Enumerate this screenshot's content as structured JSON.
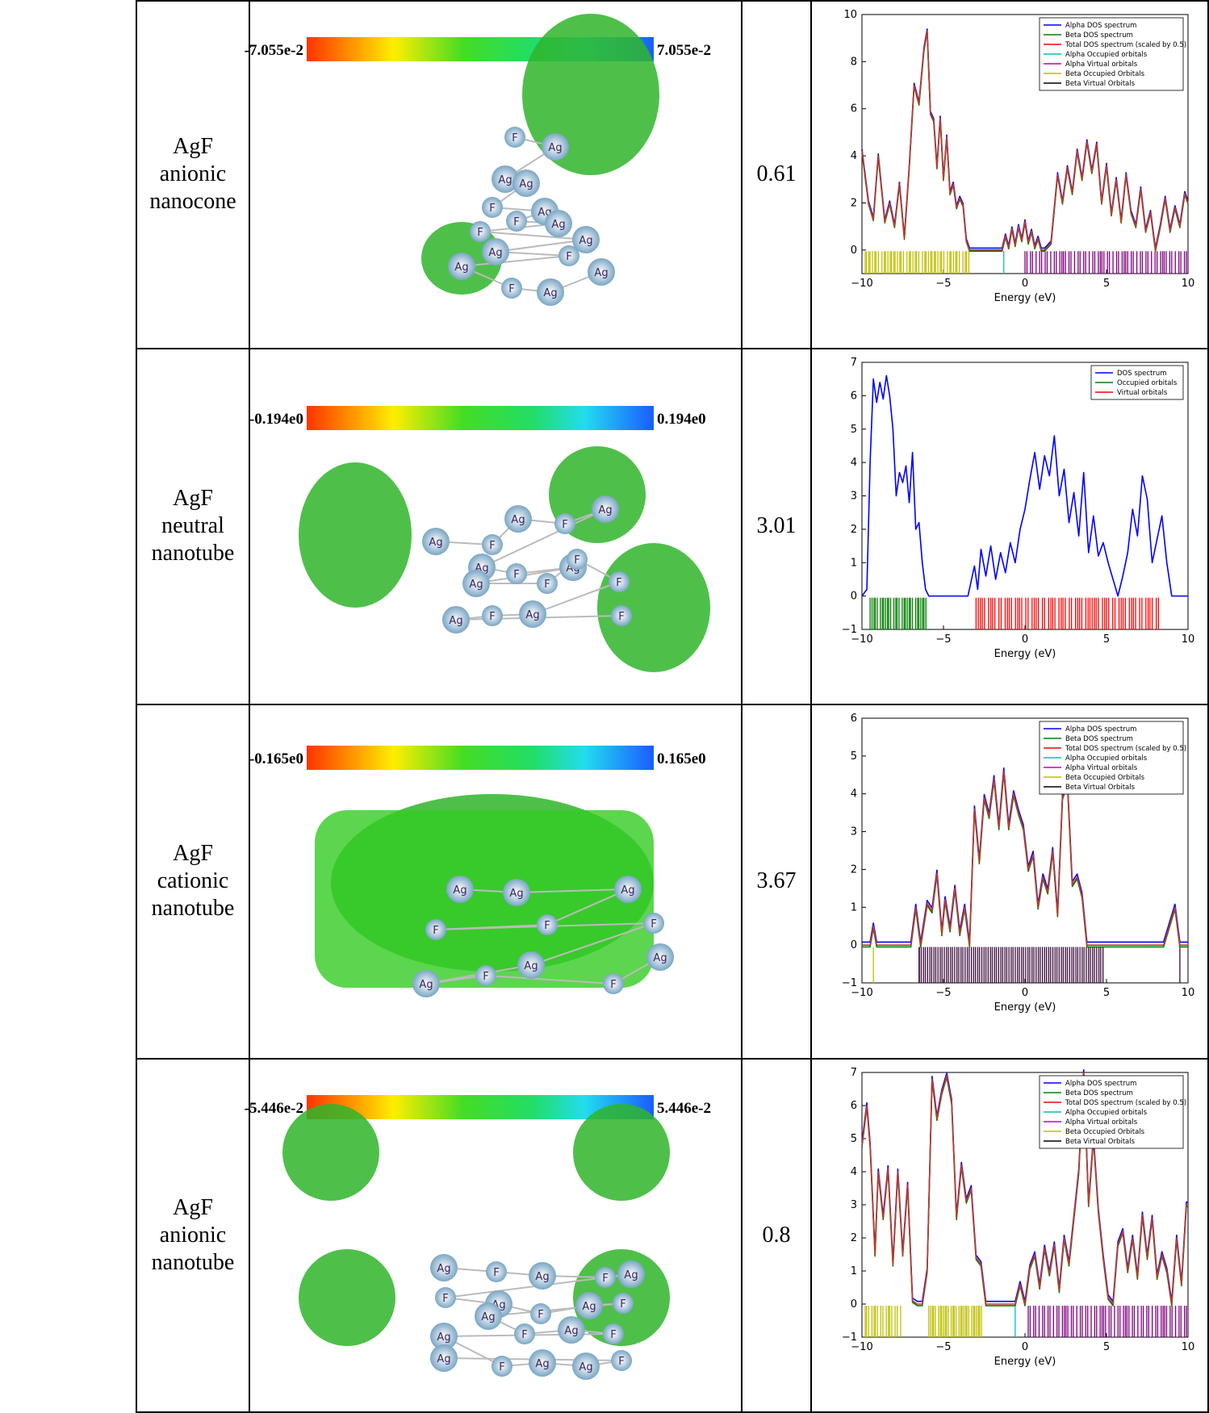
{
  "rows": [
    {
      "name_lines": [
        "AgF",
        "anionic",
        "nanocone"
      ],
      "gap": "0.61",
      "colorbar": {
        "min": "-7.055e-2",
        "max": "7.055e-2"
      },
      "atoms": [
        "F",
        "Ag",
        "Ag",
        "Ag",
        "F",
        "Ag",
        "F",
        "Ag",
        "F",
        "Ag",
        "Ag",
        "F",
        "Ag",
        "F",
        "Ag",
        "Ag"
      ]
    },
    {
      "name_lines": [
        "AgF",
        "neutral",
        "nanotube"
      ],
      "gap": "3.01",
      "colorbar": {
        "min": "-0.194e0",
        "max": "0.194e0"
      },
      "atoms": [
        "Ag",
        "F",
        "Ag",
        "F",
        "Ag",
        "Ag",
        "F",
        "Ag",
        "Ag",
        "F",
        "F",
        "F",
        "Ag",
        "F",
        "Ag",
        "F"
      ]
    },
    {
      "name_lines": [
        "AgF",
        "cationic",
        "nanotube"
      ],
      "gap": "3.67",
      "colorbar": {
        "min": "-0.165e0",
        "max": "0.165e0"
      },
      "atoms": [
        "Ag",
        "Ag",
        "Ag",
        "F",
        "F",
        "F",
        "Ag",
        "Ag",
        "F",
        "F",
        "Ag"
      ]
    },
    {
      "name_lines": [
        "AgF",
        "anionic",
        "nanotube"
      ],
      "gap": "0.8",
      "colorbar": {
        "min": "-5.446e-2",
        "max": "5.446e-2"
      },
      "atoms": [
        "Ag",
        "F",
        "Ag",
        "F",
        "Ag",
        "F",
        "Ag",
        "F",
        "Ag",
        "F",
        "Ag",
        "F",
        "Ag",
        "F",
        "Ag",
        "F",
        "Ag",
        "Ag",
        "F",
        "Ag"
      ]
    }
  ],
  "chart_data": [
    {
      "type": "line",
      "xlabel": "Energy (eV)",
      "xlim": [
        -10,
        10
      ],
      "ylim": [
        -1,
        10
      ],
      "xticks": [
        -10,
        -5,
        0,
        5,
        10
      ],
      "yticks": [
        0,
        2,
        4,
        6,
        8,
        10
      ],
      "legend_position": "top-right",
      "legend": [
        "Alpha DOS spectrum",
        "Beta DOS spectrum",
        "Total DOS spectrum (scaled by 0.5)",
        "Alpha Occupied orbitals",
        "Alpha Virtual orbitals",
        "Beta Occupied Orbitals",
        "Beta Virtual Orbitals"
      ],
      "legend_colors": [
        "#0000ff",
        "#008000",
        "#ff0000",
        "#00bfbf",
        "#bf00bf",
        "#bfbf00",
        "#000000"
      ],
      "series": [
        {
          "name": "Total DOS spectrum (scaled by 0.5)",
          "color": "#c0392b",
          "x": [
            -10,
            -9.6,
            -9.3,
            -9.0,
            -8.6,
            -8.3,
            -8.0,
            -7.7,
            -7.4,
            -7.1,
            -6.8,
            -6.5,
            -6.2,
            -6.0,
            -5.8,
            -5.6,
            -5.4,
            -5.2,
            -5.0,
            -4.8,
            -4.6,
            -4.4,
            -4.2,
            -4.0,
            -3.8,
            -3.6,
            -3.4,
            -3.2,
            -3.0,
            -2.0,
            -1.4,
            -1.2,
            -1.0,
            -0.8,
            -0.6,
            -0.4,
            -0.2,
            0.0,
            0.2,
            0.4,
            0.6,
            0.8,
            1.0,
            1.2,
            1.6,
            2.0,
            2.3,
            2.6,
            2.9,
            3.2,
            3.5,
            3.8,
            4.1,
            4.4,
            4.7,
            5.0,
            5.3,
            5.6,
            5.9,
            6.2,
            6.5,
            6.8,
            7.1,
            7.4,
            7.7,
            8.0,
            8.3,
            8.6,
            8.9,
            9.2,
            9.5,
            9.8,
            10
          ],
          "y": [
            4.2,
            2.0,
            1.3,
            4.0,
            1.2,
            2.0,
            1.0,
            2.8,
            0.5,
            3.5,
            7.0,
            6.2,
            8.5,
            9.3,
            5.8,
            5.5,
            3.5,
            5.6,
            3.0,
            4.8,
            2.4,
            2.8,
            1.8,
            2.2,
            1.9,
            0.4,
            0.0,
            0.0,
            0.0,
            0.0,
            0.0,
            0.6,
            0.1,
            0.9,
            0.2,
            1.0,
            0.4,
            1.2,
            0.3,
            0.8,
            0.1,
            0.5,
            0.0,
            0.0,
            0.3,
            3.2,
            2.0,
            3.5,
            2.4,
            4.2,
            3.0,
            4.6,
            3.3,
            4.5,
            2.0,
            3.6,
            1.5,
            3.0,
            1.2,
            3.2,
            1.6,
            1.0,
            2.6,
            0.8,
            1.6,
            0.0,
            1.0,
            2.2,
            0.8,
            1.8,
            1.0,
            2.4,
            2.0
          ]
        }
      ],
      "orbital_bands": [
        {
          "color": "#bfbf00",
          "from": -9.8,
          "to": -3.3,
          "count": 50
        },
        {
          "color": "#00bfbf",
          "from": -1.3,
          "to": -1.3,
          "count": 1
        },
        {
          "color": "#800080",
          "from": 0.0,
          "to": 10.0,
          "count": 60
        }
      ]
    },
    {
      "type": "line",
      "xlabel": "Energy (eV)",
      "xlim": [
        -10,
        10
      ],
      "ylim": [
        -1,
        7
      ],
      "xticks": [
        -10,
        -5,
        0,
        5,
        10
      ],
      "yticks": [
        -1,
        0,
        1,
        2,
        3,
        4,
        5,
        6,
        7
      ],
      "legend_position": "top-right",
      "legend": [
        "DOS spectrum",
        "Occupied orbitals",
        "Virtual orbitals"
      ],
      "legend_colors": [
        "#0000ff",
        "#008000",
        "#ff0000"
      ],
      "series": [
        {
          "name": "DOS spectrum",
          "color": "#0000ff",
          "x": [
            -10,
            -9.7,
            -9.5,
            -9.3,
            -9.1,
            -8.9,
            -8.7,
            -8.5,
            -8.3,
            -8.1,
            -7.9,
            -7.7,
            -7.5,
            -7.3,
            -7.1,
            -6.9,
            -6.7,
            -6.5,
            -6.3,
            -6.1,
            -5.9,
            -5.7,
            -5.5,
            -3.5,
            -3.1,
            -2.9,
            -2.7,
            -2.4,
            -2.1,
            -1.8,
            -1.5,
            -1.2,
            -0.9,
            -0.6,
            -0.3,
            0.0,
            0.3,
            0.6,
            0.9,
            1.2,
            1.5,
            1.8,
            2.1,
            2.4,
            2.7,
            3.0,
            3.3,
            3.6,
            3.9,
            4.2,
            4.5,
            4.8,
            5.1,
            5.4,
            5.7,
            6.0,
            6.3,
            6.6,
            6.9,
            7.2,
            7.5,
            7.8,
            8.1,
            8.4,
            8.7,
            9.0,
            10
          ],
          "y": [
            0,
            0.2,
            4.0,
            6.5,
            5.8,
            6.4,
            5.9,
            6.6,
            6.0,
            5.0,
            3.0,
            3.7,
            3.4,
            3.9,
            2.8,
            4.3,
            2.0,
            2.2,
            1.0,
            0.2,
            0.0,
            0.0,
            0.0,
            0.0,
            0.9,
            0.2,
            1.4,
            0.6,
            1.5,
            0.5,
            1.3,
            0.7,
            1.6,
            1.0,
            2.0,
            2.6,
            3.5,
            4.3,
            3.2,
            4.2,
            3.6,
            4.8,
            3.0,
            3.8,
            2.2,
            3.1,
            1.8,
            3.7,
            1.3,
            2.4,
            1.2,
            1.6,
            1.0,
            0.5,
            0.0,
            0.6,
            1.3,
            2.6,
            1.8,
            3.6,
            2.9,
            1.0,
            1.7,
            2.4,
            1.0,
            0.0,
            0.0
          ]
        }
      ],
      "orbital_bands": [
        {
          "color": "#008000",
          "from": -9.5,
          "to": -6.0,
          "count": 30
        },
        {
          "color": "#ff0000",
          "from": -3.0,
          "to": 8.3,
          "count": 70
        }
      ]
    },
    {
      "type": "line",
      "xlabel": "Energy (eV)",
      "xlim": [
        -10,
        10
      ],
      "ylim": [
        -1,
        6
      ],
      "xticks": [
        -10,
        -5,
        0,
        5,
        10
      ],
      "yticks": [
        -1,
        0,
        1,
        2,
        3,
        4,
        5,
        6
      ],
      "legend_position": "top-right",
      "legend": [
        "Alpha DOS spectrum",
        "Beta DOS spectrum",
        "Total DOS spectrum (scaled by 0.5)",
        "Alpha Occupied orbitals",
        "Alpha Virtual orbitals",
        "Beta Occupied Orbitals",
        "Beta Virtual Orbitals"
      ],
      "legend_colors": [
        "#0000ff",
        "#008000",
        "#ff0000",
        "#00bfbf",
        "#bf00bf",
        "#bfbf00",
        "#000000"
      ],
      "series": [
        {
          "name": "Total DOS spectrum (scaled by 0.5)",
          "color": "#c0392b",
          "x": [
            -10,
            -9.5,
            -9.3,
            -9.1,
            -8.9,
            -8.5,
            -7.0,
            -6.7,
            -6.4,
            -6.0,
            -5.7,
            -5.4,
            -5.1,
            -4.9,
            -4.6,
            -4.3,
            -4.0,
            -3.7,
            -3.4,
            -3.1,
            -2.8,
            -2.5,
            -2.2,
            -1.9,
            -1.6,
            -1.3,
            -1.0,
            -0.7,
            -0.4,
            -0.1,
            0.2,
            0.5,
            0.8,
            1.1,
            1.4,
            1.7,
            2.0,
            2.3,
            2.6,
            2.9,
            3.2,
            3.5,
            3.8,
            4.1,
            4.4,
            4.7,
            5.0,
            5.3,
            8.5,
            9.2,
            9.5,
            9.8,
            10
          ],
          "y": [
            0,
            0.0,
            0.5,
            0.0,
            0.0,
            0.0,
            0.0,
            1.0,
            0.0,
            1.1,
            0.9,
            1.9,
            0.3,
            1.2,
            0.4,
            1.5,
            0.3,
            1.0,
            0.0,
            3.6,
            2.2,
            3.9,
            3.4,
            4.4,
            3.1,
            4.6,
            3.1,
            4.0,
            3.5,
            3.1,
            2.0,
            2.4,
            1.0,
            1.8,
            1.4,
            2.5,
            0.8,
            3.9,
            4.3,
            1.6,
            1.8,
            1.3,
            0.0,
            0.0,
            0.0,
            0.0,
            0.0,
            0.0,
            0.0,
            1.0,
            0.0,
            0.0,
            0.0
          ]
        }
      ],
      "orbital_bands": [
        {
          "color": "#bfbf00",
          "from": -9.3,
          "to": -9.3,
          "count": 1
        },
        {
          "color": "#3b0a3b",
          "from": -6.5,
          "to": 4.9,
          "count": 90
        },
        {
          "color": "#3b0a3b",
          "from": 9.5,
          "to": 9.5,
          "count": 1
        }
      ]
    },
    {
      "type": "line",
      "xlabel": "Energy (eV)",
      "xlim": [
        -10,
        10
      ],
      "ylim": [
        -1,
        7
      ],
      "xticks": [
        -10,
        -5,
        0,
        5,
        10
      ],
      "yticks": [
        -1,
        0,
        1,
        2,
        3,
        4,
        5,
        6,
        7
      ],
      "legend_position": "top-right",
      "legend": [
        "Alpha DOS spectrum",
        "Beta DOS spectrum",
        "Total DOS spectrum (scaled by 0.5)",
        "Alpha Occupied orbitals",
        "Alpha Virtual orbitals",
        "Beta Occupied Orbitals",
        "Beta Virtual Orbitals"
      ],
      "legend_colors": [
        "#0000ff",
        "#008000",
        "#ff0000",
        "#00bfbf",
        "#bf00bf",
        "#bfbf00",
        "#000000"
      ],
      "series": [
        {
          "name": "Total DOS spectrum (scaled by 0.5)",
          "color": "#c0392b",
          "x": [
            -10,
            -9.7,
            -9.5,
            -9.2,
            -9.0,
            -8.7,
            -8.4,
            -8.1,
            -7.8,
            -7.5,
            -7.2,
            -6.9,
            -6.6,
            -6.3,
            -6.0,
            -5.7,
            -5.4,
            -5.1,
            -4.8,
            -4.5,
            -4.2,
            -3.9,
            -3.6,
            -3.3,
            -3.0,
            -2.7,
            -2.4,
            -1.0,
            -0.6,
            -0.3,
            0.0,
            0.3,
            0.6,
            0.9,
            1.2,
            1.5,
            1.8,
            2.1,
            2.4,
            2.7,
            3.0,
            3.3,
            3.6,
            3.9,
            4.2,
            4.5,
            4.8,
            5.1,
            5.4,
            5.7,
            6.0,
            6.3,
            6.6,
            6.9,
            7.2,
            7.5,
            7.8,
            8.1,
            8.4,
            8.7,
            9.0,
            9.3,
            9.6,
            9.9,
            10
          ],
          "y": [
            4.8,
            6.0,
            4.8,
            1.5,
            4.0,
            2.6,
            4.1,
            1.2,
            4.0,
            1.5,
            3.6,
            0.1,
            0.0,
            0.0,
            1.0,
            6.8,
            5.6,
            6.4,
            6.9,
            6.1,
            2.6,
            4.2,
            3.1,
            3.5,
            1.4,
            1.2,
            0.0,
            0.0,
            0.0,
            0.6,
            0.0,
            1.1,
            1.5,
            0.5,
            1.7,
            0.9,
            1.8,
            0.4,
            2.0,
            1.2,
            2.6,
            4.0,
            7.0,
            3.0,
            5.0,
            2.8,
            1.4,
            0.2,
            0.0,
            1.8,
            2.2,
            1.0,
            2.0,
            0.8,
            2.7,
            1.4,
            2.6,
            0.8,
            1.5,
            1.0,
            0.0,
            2.0,
            0.6,
            3.0,
            3.0
          ]
        }
      ],
      "orbital_bands": [
        {
          "color": "#bfbf00",
          "from": -9.8,
          "to": -7.5,
          "count": 16
        },
        {
          "color": "#bfbf00",
          "from": -5.9,
          "to": -2.6,
          "count": 30
        },
        {
          "color": "#00bfbf",
          "from": -0.6,
          "to": -0.6,
          "count": 1
        },
        {
          "color": "#800080",
          "from": 0.2,
          "to": 10.0,
          "count": 60
        }
      ]
    }
  ]
}
